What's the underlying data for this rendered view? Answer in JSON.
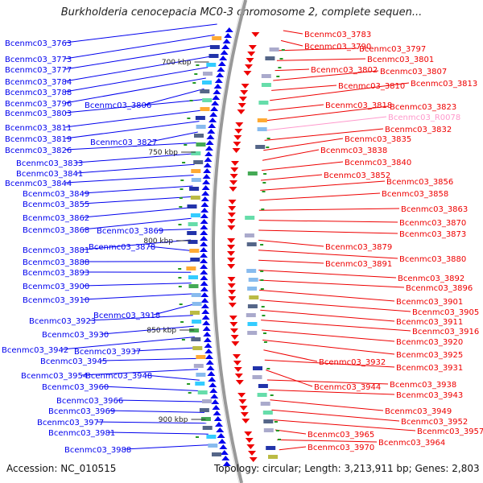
{
  "title": "Burkholderia cenocepacia MC0-3 chromosome 2, complete sequen...",
  "accession_text": "Accession: NC_010515",
  "topology_text": "Topology: circular; Length: 3,213,911 bp; Genes: 2,803",
  "colors": {
    "left_genes": "#0000ee",
    "right_genes": "#ee0000",
    "rna_gene": "#ff99cc",
    "backbone": "#999999"
  },
  "kbp_ticks": [
    "700 kbp",
    "750 kbp",
    "800 kbp",
    "850 kbp",
    "900 kbp"
  ],
  "left_labels": [
    "Bcenmc03_3763",
    "Bcenmc03_3773",
    "Bcenmc03_3777",
    "Bcenmc03_3784",
    "Bcenmc03_3788",
    "Bcenmc03_3796",
    "Bcenmc03_3806",
    "Bcenmc03_3803",
    "Bcenmc03_3811",
    "Bcenmc03_3819",
    "Bcenmc03_3827",
    "Bcenmc03_3826",
    "Bcenmc03_3833",
    "Bcenmc03_3841",
    "Bcenmc03_3844",
    "Bcenmc03_3849",
    "Bcenmc03_3855",
    "Bcenmc03_3862",
    "Bcenmc03_3868",
    "Bcenmc03_3869",
    "Bcenmc03_3881",
    "Bcenmc03_3878",
    "Bcenmc03_3888",
    "Bcenmc03_3893",
    "Bcenmc03_3900",
    "Bcenmc03_3910",
    "Bcenmc03_3918",
    "Bcenmc03_3923",
    "Bcenmc03_3930",
    "Bcenmc03_3942",
    "Bcenmc03_3937",
    "Bcenmc03_3945",
    "Bcenmc03_3954",
    "Bcenmc03_3948",
    "Bcenmc03_3960",
    "Bcenmc03_3966",
    "Bcenmc03_3969",
    "Bcenmc03_3977",
    "Bcenmc03_3981",
    "Bcenmc03_3988"
  ],
  "right_labels": [
    "Bcenmc03_3783",
    "Bcenmc03_3790",
    "Bcenmc03_3797",
    "Bcenmc03_3801",
    "Bcenmc03_3802",
    "Bcenmc03_3807",
    "Bcenmc03_3810",
    "Bcenmc03_3813",
    "Bcenmc03_3818",
    "Bcenmc03_3823",
    "Bcenmc03_R0078",
    "Bcenmc03_3832",
    "Bcenmc03_3835",
    "Bcenmc03_3838",
    "Bcenmc03_3840",
    "Bcenmc03_3852",
    "Bcenmc03_3856",
    "Bcenmc03_3858",
    "Bcenmc03_3863",
    "Bcenmc03_3870",
    "Bcenmc03_3873",
    "Bcenmc03_3879",
    "Bcenmc03_3880",
    "Bcenmc03_3891",
    "Bcenmc03_3892",
    "Bcenmc03_3896",
    "Bcenmc03_3901",
    "Bcenmc03_3905",
    "Bcenmc03_3911",
    "Bcenmc03_3916",
    "Bcenmc03_3920",
    "Bcenmc03_3925",
    "Bcenmc03_3932",
    "Bcenmc03_3931",
    "Bcenmc03_3944",
    "Bcenmc03_3938",
    "Bcenmc03_3943",
    "Bcenmc03_3949",
    "Bcenmc03_3952",
    "Bcenmc03_3957",
    "Bcenmc03_3965",
    "Bcenmc03_3964",
    "Bcenmc03_3970"
  ],
  "rna_labels": [
    "Bcenmc03_R0078"
  ]
}
